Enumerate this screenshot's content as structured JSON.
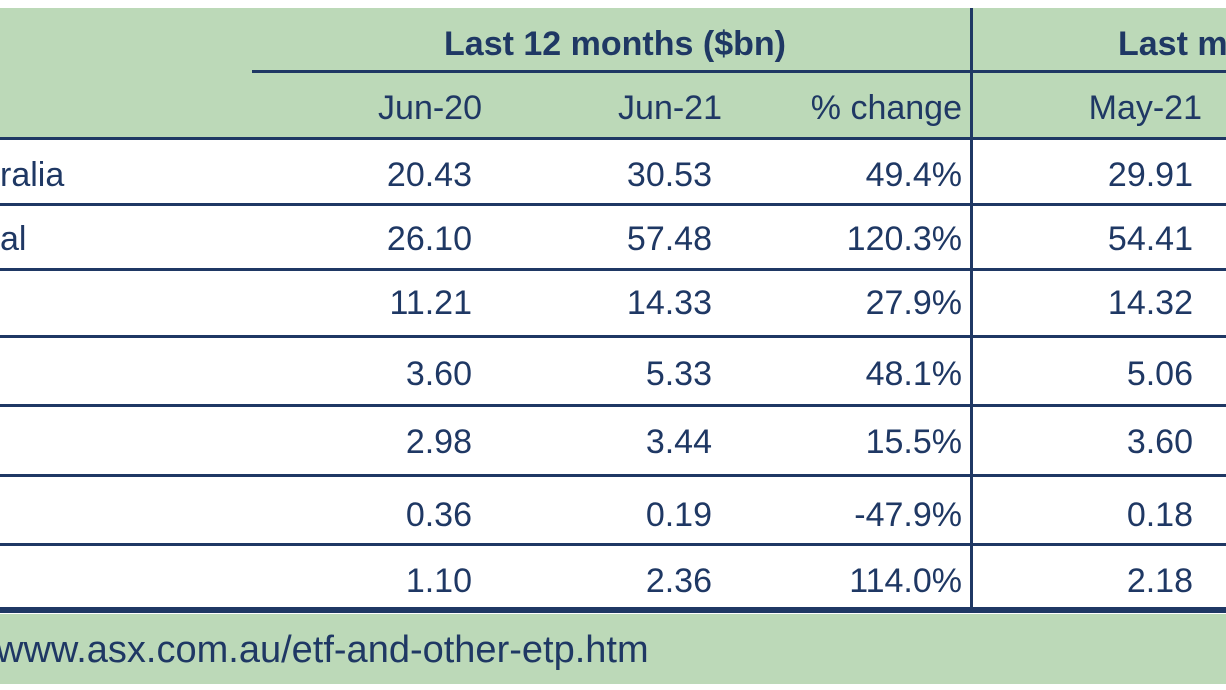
{
  "header": {
    "group_title": "Last 12 months ($bn)",
    "group_title_right": "Last m",
    "columns": [
      "Jun-20",
      "Jun-21",
      "% change",
      "May-21"
    ]
  },
  "rows": [
    {
      "label": "ralia",
      "jun20": "20.43",
      "jun21": "30.53",
      "change": "49.4%",
      "may21": "29.91"
    },
    {
      "label": "al",
      "jun20": "26.10",
      "jun21": "57.48",
      "change": "120.3%",
      "may21": "54.41"
    },
    {
      "label": "",
      "jun20": "11.21",
      "jun21": "14.33",
      "change": "27.9%",
      "may21": "14.32"
    },
    {
      "label": "",
      "jun20": "3.60",
      "jun21": "5.33",
      "change": "48.1%",
      "may21": "5.06"
    },
    {
      "label": "",
      "jun20": "2.98",
      "jun21": "3.44",
      "change": "15.5%",
      "may21": "3.60"
    },
    {
      "label": "",
      "jun20": "0.36",
      "jun21": "0.19",
      "change": "-47.9%",
      "may21": "0.18"
    },
    {
      "label": "",
      "jun20": "1.10",
      "jun21": "2.36",
      "change": "114.0%",
      "may21": "2.18"
    }
  ],
  "footer": {
    "source_url": "www.asx.com.au/etf-and-other-etp.htm"
  }
}
